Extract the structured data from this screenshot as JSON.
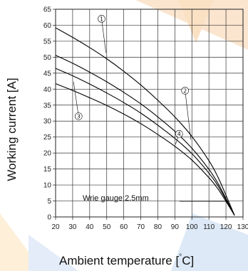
{
  "chart_data": {
    "type": "line",
    "xlabel": "Ambient temperature [°C]",
    "xlabel_main": "Ambient temperature [",
    "xlabel_deg": "°",
    "xlabel_unit": "C]",
    "ylabel": "Working current [A]",
    "xlim": [
      20,
      130
    ],
    "ylim": [
      0,
      65
    ],
    "xticks": [
      20,
      30,
      40,
      50,
      60,
      70,
      80,
      90,
      100,
      110,
      120,
      130
    ],
    "yticks": [
      0,
      5,
      10,
      15,
      20,
      25,
      30,
      35,
      40,
      45,
      50,
      55,
      60,
      65
    ],
    "grid": true,
    "annotation": "Wrie gauge:2.5mm",
    "series": [
      {
        "name": "①",
        "x": [
          20,
          30,
          40,
          50,
          60,
          70,
          80,
          90,
          100,
          110,
          115,
          120,
          125
        ],
        "y": [
          59.2,
          56.2,
          53,
          49.5,
          45.6,
          41.3,
          36.5,
          31.3,
          25.2,
          17.6,
          12.8,
          6.8,
          0.5
        ],
        "label_at": [
          47,
          62
        ]
      },
      {
        "name": "②",
        "x": [
          20,
          30,
          40,
          50,
          60,
          70,
          80,
          90,
          100,
          110,
          115,
          120,
          125
        ],
        "y": [
          50.6,
          48.1,
          45.3,
          42.3,
          39,
          35.4,
          31.3,
          26.8,
          21.5,
          14.9,
          10.8,
          5.8,
          0.5
        ],
        "label_at": [
          96,
          39.5
        ]
      },
      {
        "name": "③",
        "x": [
          20,
          30,
          40,
          50,
          60,
          70,
          80,
          90,
          100,
          110,
          115,
          120,
          125
        ],
        "y": [
          46.5,
          44.2,
          41.6,
          38.8,
          35.8,
          32.5,
          28.7,
          24.6,
          19.8,
          13.7,
          10,
          5.4,
          0.5
        ],
        "label_at": [
          33.5,
          31.5
        ]
      },
      {
        "name": "④",
        "x": [
          20,
          30,
          40,
          50,
          60,
          70,
          80,
          90,
          100,
          110,
          115,
          120,
          125
        ],
        "y": [
          41.7,
          39.6,
          37.3,
          34.9,
          32.2,
          29.2,
          25.8,
          22.1,
          17.8,
          12.3,
          9,
          4.9,
          0.5
        ],
        "label_at": [
          92.5,
          26
        ]
      }
    ]
  }
}
